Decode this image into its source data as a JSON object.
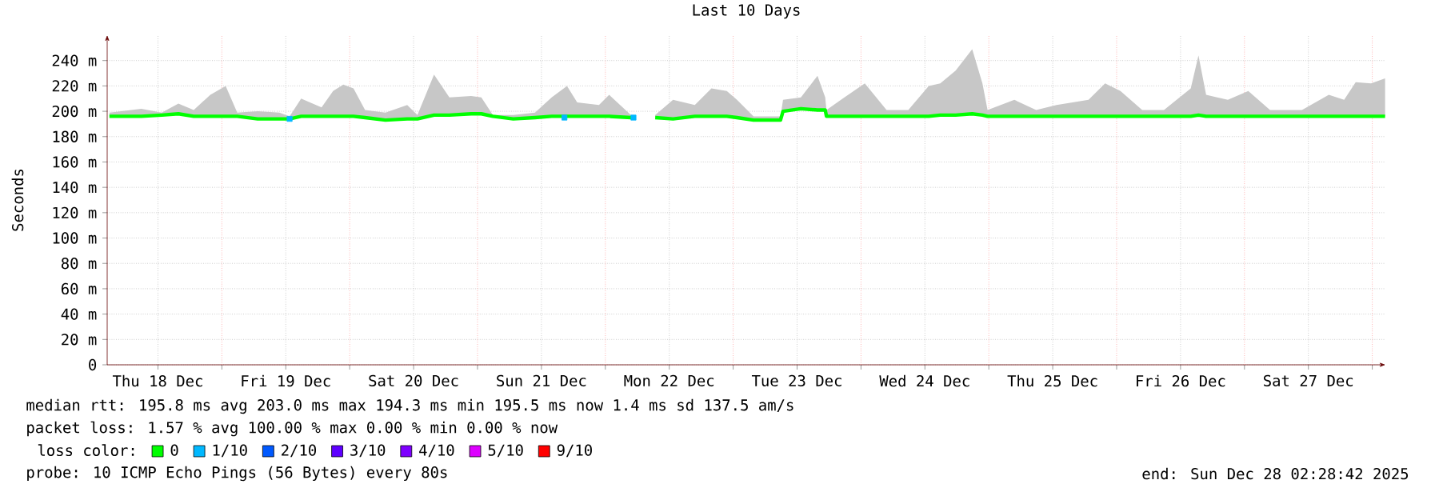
{
  "chart_data": {
    "type": "line",
    "title": "Last 10 Days",
    "ylabel": "Seconds",
    "xlim": [
      "2025-12-18T02:28",
      "2025-12-28T02:28"
    ],
    "xticks": [
      {
        "value": "2025-12-18T12:00",
        "label": "Thu 18 Dec"
      },
      {
        "value": "2025-12-19T12:00",
        "label": "Fri 19 Dec"
      },
      {
        "value": "2025-12-20T12:00",
        "label": "Sat 20 Dec"
      },
      {
        "value": "2025-12-21T12:00",
        "label": "Sun 21 Dec"
      },
      {
        "value": "2025-12-22T12:00",
        "label": "Mon 22 Dec"
      },
      {
        "value": "2025-12-23T12:00",
        "label": "Tue 23 Dec"
      },
      {
        "value": "2025-12-24T12:00",
        "label": "Wed 24 Dec"
      },
      {
        "value": "2025-12-25T12:00",
        "label": "Thu 25 Dec"
      },
      {
        "value": "2025-12-26T12:00",
        "label": "Fri 26 Dec"
      },
      {
        "value": "2025-12-27T12:00",
        "label": "Sat 27 Dec"
      },
      {
        "value": "2025-12-19",
        "label": null
      },
      {
        "value": "2025-12-20",
        "label": null
      },
      {
        "value": "2025-12-21",
        "label": null
      },
      {
        "value": "2025-12-22",
        "label": null
      },
      {
        "value": "2025-12-23",
        "label": null
      },
      {
        "value": "2025-12-24",
        "label": null
      },
      {
        "value": "2025-12-25",
        "label": null
      },
      {
        "value": "2025-12-26",
        "label": null
      },
      {
        "value": "2025-12-27",
        "label": null
      },
      {
        "value": "2025-12-28",
        "label": null
      }
    ],
    "ylim": [
      0,
      260
    ],
    "yticks": [
      0,
      {
        "value": 20,
        "label": "20 m"
      },
      {
        "value": 40,
        "label": "40 m"
      },
      {
        "value": 60,
        "label": "60 m"
      },
      {
        "value": 80,
        "label": "80 m"
      },
      {
        "value": 100,
        "label": "100 m"
      },
      {
        "value": 120,
        "label": "120 m"
      },
      {
        "value": 140,
        "label": "140 m"
      },
      {
        "value": 160,
        "label": "160 m"
      },
      {
        "value": 180,
        "label": "180 m"
      },
      {
        "value": 200,
        "label": "200 m"
      },
      {
        "value": 220,
        "label": "220 m"
      },
      {
        "value": 240,
        "label": "240 m"
      }
    ],
    "grid": true,
    "legend": "bottom",
    "legend_title": "loss color:",
    "series": [
      {
        "name": "0",
        "color": "#00ff00",
        "x": [
          "2025-12-18T02:53",
          "2025-12-18T08:53",
          "2025-12-18T12:43",
          "2025-12-18T15:50",
          "2025-12-18T18:43",
          "2025-12-18T21:50",
          "2025-12-19T00:43",
          "2025-12-19T02:53",
          "2025-12-19T06:43",
          "2025-12-19T10:48",
          "2025-12-19T12:43",
          "2025-12-19T14:53",
          "2025-12-19T18:43",
          "2025-12-19T20:53",
          "2025-12-19T22:48",
          "2025-12-20T00:43",
          "2025-12-20T02:53",
          "2025-12-20T06:43",
          "2025-12-20T10:48",
          "2025-12-20T12:43",
          "2025-12-20T15:50",
          "2025-12-20T18:43",
          "2025-12-20T22:48",
          "2025-12-21T00:43",
          "2025-12-21T02:53",
          "2025-12-21T06:43",
          "2025-12-21T10:48",
          "2025-12-21T13:55",
          "2025-12-21T16:48",
          "2025-12-21T18:43",
          "2025-12-21T22:48",
          "2025-12-22T00:43",
          "2025-12-22T04:48",
          "2025-12-22T05:17",
          "2025-12-22T07:26",
          "2025-12-22T09:22",
          "2025-12-22T12:43",
          "2025-12-22T16:48",
          "2025-12-22T19:55",
          "2025-12-22T22:48",
          "2025-12-23T00:43",
          "2025-12-23T03:50",
          "2025-12-23T08:53",
          "2025-12-23T09:22",
          "2025-12-23T12:43",
          "2025-12-23T15:50",
          "2025-12-23T17:17",
          "2025-12-23T17:31",
          "2025-12-23T20:53",
          "2025-12-24T00:43",
          "2025-12-24T04:48",
          "2025-12-24T08:53",
          "2025-12-24T12:43",
          "2025-12-24T14:53",
          "2025-12-24T17:46",
          "2025-12-24T20:53",
          "2025-12-24T22:48",
          "2025-12-24T23:46",
          "2025-12-25T04:48",
          "2025-12-25T08:53",
          "2025-12-25T12:43",
          "2025-12-25T18:43",
          "2025-12-25T21:50",
          "2025-12-26T00:43",
          "2025-12-26T04:48",
          "2025-12-26T08:53",
          "2025-12-26T13:55",
          "2025-12-26T15:22",
          "2025-12-26T16:48",
          "2025-12-26T20:53",
          "2025-12-27T00:43",
          "2025-12-27T04:48",
          "2025-12-27T10:48",
          "2025-12-27T15:50",
          "2025-12-27T18:43",
          "2025-12-27T20:53",
          "2025-12-27T23:46",
          "2025-12-28T02:24"
        ],
        "values": [
          196,
          196,
          197,
          198,
          196,
          196,
          196,
          196,
          194,
          194,
          194,
          196,
          196,
          196,
          196,
          196,
          195,
          193,
          194,
          194,
          197,
          197,
          198,
          198,
          196,
          194,
          195,
          196,
          196,
          196,
          196,
          196,
          195,
          195,
          null,
          195,
          194,
          196,
          196,
          196,
          195,
          193,
          193,
          200,
          202,
          201,
          201,
          196,
          196,
          196,
          196,
          196,
          196,
          197,
          197,
          198,
          197,
          196,
          196,
          196,
          196,
          196,
          196,
          196,
          196,
          196,
          196,
          197,
          196,
          196,
          196,
          196,
          196,
          196,
          196,
          196,
          196,
          196
        ],
        "lower": [
          196,
          196,
          197,
          198,
          196,
          196,
          196,
          196,
          194,
          194,
          194,
          196,
          196,
          196,
          196,
          196,
          195,
          193,
          194,
          194,
          197,
          197,
          198,
          198,
          196,
          194,
          195,
          196,
          196,
          196,
          196,
          196,
          195,
          195,
          null,
          195,
          194,
          196,
          196,
          196,
          195,
          193,
          193,
          200,
          202,
          201,
          201,
          196,
          196,
          196,
          196,
          196,
          196,
          197,
          197,
          198,
          197,
          196,
          196,
          196,
          196,
          196,
          196,
          196,
          196,
          196,
          196,
          197,
          196,
          196,
          196,
          196,
          196,
          196,
          196,
          196,
          196,
          196
        ],
        "upper": [
          199,
          202,
          199,
          206,
          201,
          213,
          220,
          199,
          200,
          199,
          196,
          210,
          203,
          216,
          221,
          218,
          201,
          199,
          205,
          197,
          229,
          211,
          212,
          211,
          197,
          197,
          199,
          211,
          220,
          207,
          205,
          213,
          197,
          197,
          null,
          197,
          209,
          205,
          218,
          216,
          209,
          196,
          196,
          209,
          211,
          228,
          211,
          201,
          211,
          222,
          201,
          201,
          220,
          222,
          232,
          249,
          222,
          201,
          209,
          201,
          205,
          209,
          222,
          216,
          201,
          201,
          218,
          244,
          213,
          209,
          216,
          201,
          201,
          213,
          209,
          223,
          222,
          226
        ]
      },
      {
        "name": "1/10",
        "color": "#00b8ff",
        "type": "scatter",
        "marker": "square",
        "x": [
          "2025-12-19T12:43",
          "2025-12-21T16:19",
          "2025-12-22T05:17"
        ],
        "values": [
          194,
          195,
          195
        ]
      },
      {
        "name": "2/10",
        "color": "#0059ff",
        "type": "scatter"
      },
      {
        "name": "3/10",
        "color": "#5e00ff",
        "type": "scatter"
      },
      {
        "name": "4/10",
        "color": "#7e00ff",
        "type": "scatter"
      },
      {
        "name": "5/10",
        "color": "#dd00ff",
        "type": "scatter"
      },
      {
        "name": "9/10",
        "color": "#ff0000",
        "type": "scatter"
      }
    ],
    "annotations": [
      "median rtt: 195.8 ms avg 203.0 ms max 194.3 ms min 195.5 ms now 1.4 ms sd 137.5 am/s",
      "packet loss: 1.57 % avg 100.00 % max 0.00 % min 0.00 % now",
      "probe: 10 ICMP Echo Pings (56 Bytes) every 80s",
      "end: Sun Dec 28 02:28:42 2025"
    ]
  }
}
